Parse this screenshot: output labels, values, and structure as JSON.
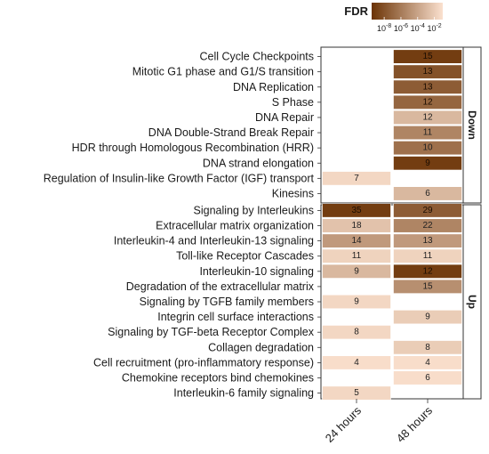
{
  "chart_data": {
    "type": "heatmap",
    "columns": [
      "24 hours",
      "48 hours"
    ],
    "legend": {
      "title": "FDR",
      "ticks": [
        {
          "base": "10",
          "exp": "-8",
          "log10": -8
        },
        {
          "base": "10",
          "exp": "-6",
          "log10": -6
        },
        {
          "base": "10",
          "exp": "-4",
          "log10": -4
        },
        {
          "base": "10",
          "exp": "-2",
          "log10": -2
        }
      ],
      "log10_range": [
        -9.5,
        -1
      ],
      "color_low": "#6b3305",
      "color_high": "#fbe1cf"
    },
    "facets": [
      {
        "label": "Down",
        "rows": [
          {
            "name": "Cell Cycle Checkpoints",
            "cells": [
              null,
              {
                "count": "15",
                "log10_fdr": -9
              }
            ]
          },
          {
            "name": "Mitotic G1 phase and G1/S transition",
            "cells": [
              null,
              {
                "count": "13",
                "log10_fdr": -8
              }
            ]
          },
          {
            "name": "DNA Replication",
            "cells": [
              null,
              {
                "count": "13",
                "log10_fdr": -7.5
              }
            ]
          },
          {
            "name": "S Phase",
            "cells": [
              null,
              {
                "count": "12",
                "log10_fdr": -7
              }
            ]
          },
          {
            "name": "DNA Repair",
            "cells": [
              null,
              {
                "count": "12",
                "log10_fdr": -3
              }
            ]
          },
          {
            "name": "DNA Double-Strand Break Repair",
            "cells": [
              null,
              {
                "count": "11",
                "log10_fdr": -5.5
              }
            ]
          },
          {
            "name": "HDR through Homologous Recombination (HRR)",
            "cells": [
              null,
              {
                "count": "10",
                "log10_fdr": -6.5
              }
            ]
          },
          {
            "name": "DNA strand elongation",
            "cells": [
              null,
              {
                "count": "9",
                "log10_fdr": -9
              }
            ]
          },
          {
            "name": "Regulation of Insulin-like Growth Factor (IGF) transport",
            "cells": [
              {
                "count": "7",
                "log10_fdr": -1.5
              },
              null
            ]
          },
          {
            "name": "Kinesins",
            "cells": [
              null,
              {
                "count": "6",
                "log10_fdr": -3
              }
            ]
          }
        ]
      },
      {
        "label": "Up",
        "rows": [
          {
            "name": "Signaling by Interleukins",
            "cells": [
              {
                "count": "35",
                "log10_fdr": -9
              },
              {
                "count": "29",
                "log10_fdr": -7.5
              }
            ]
          },
          {
            "name": "Extracellular matrix organization",
            "cells": [
              {
                "count": "18",
                "log10_fdr": -2.5
              },
              {
                "count": "22",
                "log10_fdr": -5.5
              }
            ]
          },
          {
            "name": "Interleukin-4 and Interleukin-13 signaling",
            "cells": [
              {
                "count": "14",
                "log10_fdr": -4.5
              },
              {
                "count": "13",
                "log10_fdr": -4.5
              }
            ]
          },
          {
            "name": "Toll-like Receptor Cascades",
            "cells": [
              {
                "count": "11",
                "log10_fdr": -1.7
              },
              {
                "count": "11",
                "log10_fdr": -1.7
              }
            ]
          },
          {
            "name": "Interleukin-10 signaling",
            "cells": [
              {
                "count": "9",
                "log10_fdr": -3
              },
              {
                "count": "12",
                "log10_fdr": -9
              }
            ]
          },
          {
            "name": "Degradation of the extracellular matrix",
            "cells": [
              null,
              {
                "count": "15",
                "log10_fdr": -5
              }
            ]
          },
          {
            "name": "Signaling by TGFB family members",
            "cells": [
              {
                "count": "9",
                "log10_fdr": -1.5
              },
              null
            ]
          },
          {
            "name": "Integrin cell surface interactions",
            "cells": [
              null,
              {
                "count": "9",
                "log10_fdr": -2
              }
            ]
          },
          {
            "name": "Signaling by TGF-beta Receptor Complex",
            "cells": [
              {
                "count": "8",
                "log10_fdr": -1.5
              },
              null
            ]
          },
          {
            "name": "Collagen degradation",
            "cells": [
              null,
              {
                "count": "8",
                "log10_fdr": -2
              }
            ]
          },
          {
            "name": "Cell recruitment (pro-inflammatory response)",
            "cells": [
              {
                "count": "4",
                "log10_fdr": -1.2
              },
              {
                "count": "4",
                "log10_fdr": -1.2
              }
            ]
          },
          {
            "name": "Chemokine receptors bind chemokines",
            "cells": [
              null,
              {
                "count": "6",
                "log10_fdr": -1.2
              }
            ]
          },
          {
            "name": "Interleukin-6 family signaling",
            "cells": [
              {
                "count": "5",
                "log10_fdr": -1.5
              },
              null
            ]
          }
        ]
      }
    ]
  }
}
